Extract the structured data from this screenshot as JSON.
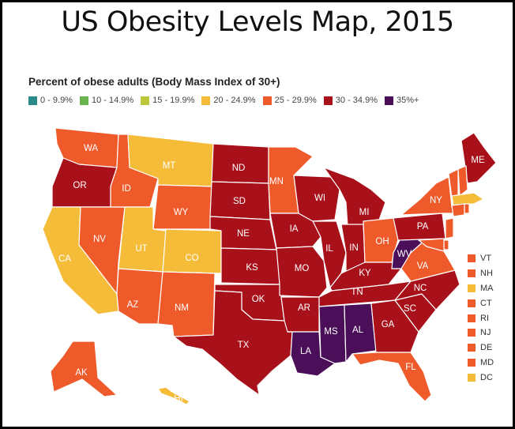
{
  "title": "US Obesity Levels Map, 2015",
  "legend": {
    "title": "Percent of obese adults (Body Mass Index of 30+)",
    "items": [
      {
        "label": "0 - 9.9%",
        "color": "#2a8a8a"
      },
      {
        "label": "10 - 14.9%",
        "color": "#6bb34e"
      },
      {
        "label": "15 - 19.9%",
        "color": "#bcc83a"
      },
      {
        "label": "20 - 24.9%",
        "color": "#f5bc3a"
      },
      {
        "label": "25 - 29.9%",
        "color": "#ef5a2a"
      },
      {
        "label": "30 - 34.9%",
        "color": "#a8101a"
      },
      {
        "label": "35%+",
        "color": "#4b0f5a"
      }
    ]
  },
  "states": [
    {
      "abbr": "WA",
      "bracket": "25 - 29.9%"
    },
    {
      "abbr": "OR",
      "bracket": "30 - 34.9%"
    },
    {
      "abbr": "CA",
      "bracket": "20 - 24.9%"
    },
    {
      "abbr": "NV",
      "bracket": "25 - 29.9%"
    },
    {
      "abbr": "ID",
      "bracket": "25 - 29.9%"
    },
    {
      "abbr": "MT",
      "bracket": "20 - 24.9%"
    },
    {
      "abbr": "WY",
      "bracket": "25 - 29.9%"
    },
    {
      "abbr": "UT",
      "bracket": "20 - 24.9%"
    },
    {
      "abbr": "CO",
      "bracket": "20 - 24.9%"
    },
    {
      "abbr": "AZ",
      "bracket": "25 - 29.9%"
    },
    {
      "abbr": "NM",
      "bracket": "25 - 29.9%"
    },
    {
      "abbr": "ND",
      "bracket": "30 - 34.9%"
    },
    {
      "abbr": "SD",
      "bracket": "30 - 34.9%"
    },
    {
      "abbr": "NE",
      "bracket": "30 - 34.9%"
    },
    {
      "abbr": "KS",
      "bracket": "30 - 34.9%"
    },
    {
      "abbr": "OK",
      "bracket": "30 - 34.9%"
    },
    {
      "abbr": "TX",
      "bracket": "30 - 34.9%"
    },
    {
      "abbr": "MN",
      "bracket": "25 - 29.9%"
    },
    {
      "abbr": "IA",
      "bracket": "30 - 34.9%"
    },
    {
      "abbr": "MO",
      "bracket": "30 - 34.9%"
    },
    {
      "abbr": "AR",
      "bracket": "30 - 34.9%"
    },
    {
      "abbr": "LA",
      "bracket": "35%+"
    },
    {
      "abbr": "WI",
      "bracket": "30 - 34.9%"
    },
    {
      "abbr": "IL",
      "bracket": "30 - 34.9%"
    },
    {
      "abbr": "MI",
      "bracket": "30 - 34.9%"
    },
    {
      "abbr": "IN",
      "bracket": "30 - 34.9%"
    },
    {
      "abbr": "OH",
      "bracket": "25 - 29.9%"
    },
    {
      "abbr": "KY",
      "bracket": "30 - 34.9%"
    },
    {
      "abbr": "TN",
      "bracket": "30 - 34.9%"
    },
    {
      "abbr": "MS",
      "bracket": "35%+"
    },
    {
      "abbr": "AL",
      "bracket": "35%+"
    },
    {
      "abbr": "GA",
      "bracket": "30 - 34.9%"
    },
    {
      "abbr": "FL",
      "bracket": "25 - 29.9%"
    },
    {
      "abbr": "SC",
      "bracket": "30 - 34.9%"
    },
    {
      "abbr": "NC",
      "bracket": "30 - 34.9%"
    },
    {
      "abbr": "VA",
      "bracket": "25 - 29.9%"
    },
    {
      "abbr": "WV",
      "bracket": "35%+"
    },
    {
      "abbr": "PA",
      "bracket": "30 - 34.9%"
    },
    {
      "abbr": "NY",
      "bracket": "25 - 29.9%"
    },
    {
      "abbr": "ME",
      "bracket": "30 - 34.9%"
    },
    {
      "abbr": "AK",
      "bracket": "25 - 29.9%"
    },
    {
      "abbr": "HI",
      "bracket": "20 - 24.9%"
    },
    {
      "abbr": "CT",
      "bracket": "25 - 29.9%"
    },
    {
      "abbr": "VT",
      "bracket": "25 - 29.9%"
    },
    {
      "abbr": "NH",
      "bracket": "25 - 29.9%"
    },
    {
      "abbr": "MA",
      "bracket": "20 - 24.9%"
    },
    {
      "abbr": "RI",
      "bracket": "25 - 29.9%"
    },
    {
      "abbr": "NJ",
      "bracket": "25 - 29.9%"
    },
    {
      "abbr": "DE",
      "bracket": "25 - 29.9%"
    },
    {
      "abbr": "MD",
      "bracket": "25 - 29.9%"
    },
    {
      "abbr": "DC",
      "bracket": "20 - 24.9%"
    }
  ],
  "small_states_list": [
    "VT",
    "NH",
    "MA",
    "CT",
    "RI",
    "NJ",
    "DE",
    "MD",
    "DC"
  ]
}
